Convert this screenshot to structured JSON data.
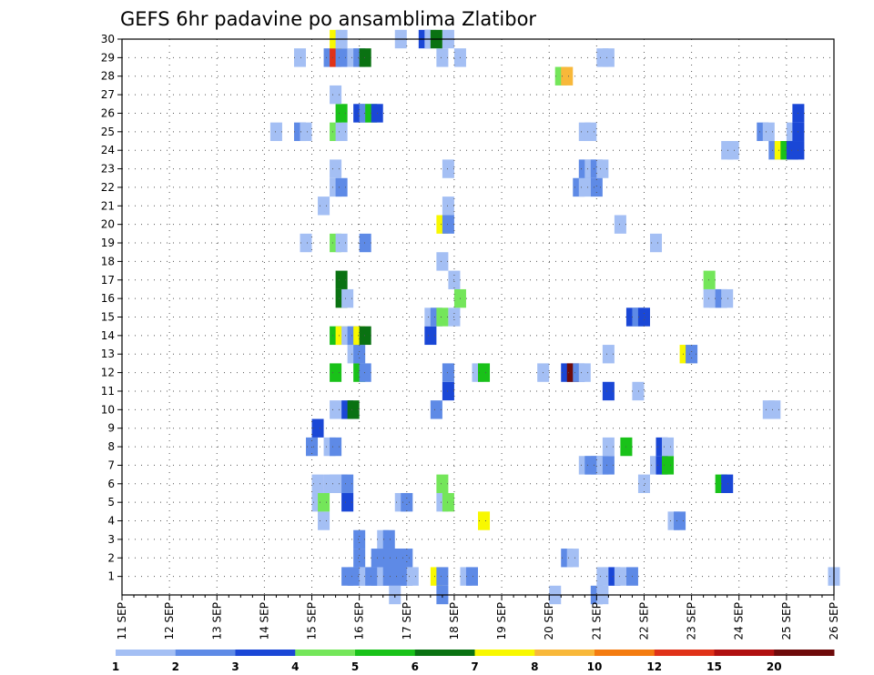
{
  "chart_data": {
    "type": "heatmap",
    "title": "GEFS 6hr padavine po ansamblima Zlatibor",
    "xlabel": "",
    "ylabel": "",
    "x_ticks": [
      "11 SEP",
      "12 SEP",
      "13 SEP",
      "14 SEP",
      "15 SEP",
      "16 SEP",
      "17 SEP",
      "18 SEP",
      "19 SEP",
      "20 SEP",
      "21 SEP",
      "22 SEP",
      "23 SEP",
      "24 SEP",
      "25 SEP",
      "26 SEP"
    ],
    "y_ticks": [
      "1",
      "2",
      "3",
      "4",
      "5",
      "6",
      "7",
      "8",
      "9",
      "10",
      "11",
      "12",
      "13",
      "14",
      "15",
      "16",
      "17",
      "18",
      "19",
      "20",
      "21",
      "22",
      "23",
      "24",
      "25",
      "26",
      "27",
      "28",
      "29",
      "30"
    ],
    "x_unit": "6-hour steps from 11 SEP 00Z",
    "x_steps_per_day": 4,
    "y_range": [
      0,
      30
    ],
    "grid": true,
    "colorbar": {
      "labels": [
        "1",
        "2",
        "3",
        "4",
        "5",
        "6",
        "7",
        "8",
        "10",
        "12",
        "15",
        "20"
      ],
      "colors": [
        "#a4bff4",
        "#5e8ae6",
        "#1a47d6",
        "#74e65a",
        "#19c219",
        "#0a7212",
        "#f8f800",
        "#f8b83a",
        "#f47c10",
        "#e03218",
        "#b01010",
        "#6e0a0a"
      ]
    },
    "cells": [
      [
        1,
        40,
        0
      ],
      [
        2,
        40,
        1
      ],
      [
        3,
        40,
        1
      ],
      [
        1,
        41,
        0
      ],
      [
        1,
        42,
        1
      ],
      [
        1,
        43,
        1
      ],
      [
        2,
        43,
        1
      ],
      [
        1,
        44,
        0
      ],
      [
        2,
        44,
        1
      ],
      [
        3,
        44,
        0
      ],
      [
        1,
        45,
        1
      ],
      [
        2,
        45,
        1
      ],
      [
        3,
        45,
        1
      ],
      [
        1,
        46,
        1
      ],
      [
        2,
        46,
        1
      ],
      [
        1,
        47,
        1
      ],
      [
        2,
        47,
        1
      ],
      [
        1,
        48,
        1
      ],
      [
        2,
        48,
        1
      ],
      [
        1,
        49,
        0
      ],
      [
        1,
        38,
        1
      ],
      [
        1,
        39,
        1
      ],
      [
        1,
        81,
        0
      ],
      [
        1,
        82,
        0
      ],
      [
        1,
        83,
        2
      ],
      [
        1,
        84,
        0
      ],
      [
        1,
        86,
        1
      ],
      [
        1,
        120,
        0
      ],
      [
        1,
        53,
        6
      ],
      [
        1,
        54,
        1
      ],
      [
        1,
        58,
        0
      ],
      [
        0,
        54,
        1
      ],
      [
        1,
        59,
        1
      ],
      [
        0,
        46,
        0
      ],
      [
        0,
        73,
        0
      ],
      [
        0,
        80,
        1
      ],
      [
        0,
        81,
        0
      ],
      [
        2,
        75,
        1
      ],
      [
        2,
        76,
        0
      ],
      [
        4,
        34,
        0
      ],
      [
        4,
        93,
        0
      ],
      [
        4,
        94,
        1
      ],
      [
        4,
        61,
        6
      ],
      [
        5,
        33,
        0
      ],
      [
        5,
        34,
        3
      ],
      [
        5,
        38,
        2
      ],
      [
        5,
        47,
        0
      ],
      [
        5,
        48,
        1
      ],
      [
        5,
        54,
        0
      ],
      [
        5,
        55,
        3
      ],
      [
        6,
        33,
        0
      ],
      [
        6,
        35,
        0
      ],
      [
        6,
        36,
        0
      ],
      [
        6,
        37,
        0
      ],
      [
        6,
        38,
        1
      ],
      [
        6,
        54,
        3
      ],
      [
        6,
        88,
        0
      ],
      [
        6,
        101,
        4
      ],
      [
        6,
        102,
        2
      ],
      [
        7,
        78,
        0
      ],
      [
        7,
        79,
        1
      ],
      [
        7,
        80,
        1
      ],
      [
        7,
        81,
        0
      ],
      [
        7,
        82,
        1
      ],
      [
        7,
        90,
        0
      ],
      [
        7,
        91,
        2
      ],
      [
        7,
        92,
        4
      ],
      [
        8,
        32,
        1
      ],
      [
        8,
        35,
        0
      ],
      [
        8,
        36,
        1
      ],
      [
        8,
        82,
        0
      ],
      [
        8,
        85,
        4
      ],
      [
        8,
        91,
        2
      ],
      [
        8,
        92,
        0
      ],
      [
        9,
        33,
        2
      ],
      [
        10,
        36,
        0
      ],
      [
        10,
        38,
        2
      ],
      [
        10,
        39,
        5
      ],
      [
        10,
        53,
        1
      ],
      [
        10,
        109,
        0
      ],
      [
        10,
        110,
        0
      ],
      [
        11,
        55,
        2
      ],
      [
        11,
        82,
        2
      ],
      [
        11,
        87,
        0
      ],
      [
        12,
        36,
        4
      ],
      [
        12,
        40,
        4
      ],
      [
        12,
        41,
        1
      ],
      [
        12,
        55,
        1
      ],
      [
        12,
        60,
        0
      ],
      [
        12,
        61,
        4
      ],
      [
        12,
        71,
        0
      ],
      [
        12,
        75,
        2
      ],
      [
        12,
        76,
        11
      ],
      [
        12,
        77,
        1
      ],
      [
        12,
        78,
        0
      ],
      [
        13,
        39,
        0
      ],
      [
        13,
        40,
        1
      ],
      [
        13,
        82,
        0
      ],
      [
        13,
        95,
        6
      ],
      [
        13,
        96,
        1
      ],
      [
        14,
        36,
        4
      ],
      [
        14,
        37,
        6
      ],
      [
        14,
        38,
        0
      ],
      [
        14,
        39,
        1
      ],
      [
        14,
        40,
        6
      ],
      [
        14,
        41,
        5
      ],
      [
        14,
        52,
        2
      ],
      [
        15,
        52,
        0
      ],
      [
        15,
        53,
        1
      ],
      [
        15,
        54,
        3
      ],
      [
        15,
        56,
        0
      ],
      [
        15,
        86,
        2
      ],
      [
        15,
        87,
        1
      ],
      [
        15,
        88,
        2
      ],
      [
        16,
        37,
        5
      ],
      [
        16,
        38,
        0
      ],
      [
        16,
        57,
        3
      ],
      [
        16,
        99,
        0
      ],
      [
        16,
        100,
        0
      ],
      [
        16,
        101,
        1
      ],
      [
        16,
        102,
        0
      ],
      [
        17,
        37,
        5
      ],
      [
        17,
        56,
        0
      ],
      [
        17,
        99,
        3
      ],
      [
        18,
        54,
        0
      ],
      [
        19,
        31,
        0
      ],
      [
        19,
        36,
        3
      ],
      [
        19,
        37,
        0
      ],
      [
        19,
        41,
        1
      ],
      [
        19,
        90,
        0
      ],
      [
        20,
        54,
        6
      ],
      [
        20,
        55,
        1
      ],
      [
        20,
        84,
        0
      ],
      [
        21,
        34,
        0
      ],
      [
        21,
        55,
        0
      ],
      [
        22,
        36,
        0
      ],
      [
        22,
        37,
        1
      ],
      [
        22,
        77,
        1
      ],
      [
        22,
        78,
        0
      ],
      [
        22,
        80,
        1
      ],
      [
        23,
        36,
        0
      ],
      [
        23,
        55,
        0
      ],
      [
        23,
        78,
        1
      ],
      [
        23,
        79,
        0
      ],
      [
        23,
        80,
        1
      ],
      [
        23,
        81,
        0
      ],
      [
        24,
        102,
        0
      ],
      [
        24,
        103,
        0
      ],
      [
        24,
        110,
        1
      ],
      [
        24,
        111,
        6
      ],
      [
        24,
        112,
        4
      ],
      [
        24,
        113,
        2
      ],
      [
        24,
        114,
        2
      ],
      [
        25,
        26,
        0
      ],
      [
        25,
        30,
        1
      ],
      [
        25,
        31,
        0
      ],
      [
        25,
        36,
        3
      ],
      [
        25,
        37,
        0
      ],
      [
        25,
        78,
        0
      ],
      [
        25,
        79,
        0
      ],
      [
        25,
        108,
        1
      ],
      [
        25,
        109,
        0
      ],
      [
        25,
        113,
        0
      ],
      [
        25,
        114,
        2
      ],
      [
        26,
        37,
        4
      ],
      [
        26,
        40,
        2
      ],
      [
        26,
        41,
        1
      ],
      [
        26,
        42,
        4
      ],
      [
        26,
        43,
        2
      ],
      [
        26,
        114,
        2
      ],
      [
        27,
        36,
        0
      ],
      [
        28,
        74,
        3
      ],
      [
        28,
        75,
        7
      ],
      [
        29,
        30,
        0
      ],
      [
        29,
        35,
        1
      ],
      [
        29,
        36,
        9
      ],
      [
        29,
        37,
        1
      ],
      [
        29,
        39,
        0
      ],
      [
        29,
        40,
        1
      ],
      [
        29,
        41,
        5
      ],
      [
        29,
        54,
        0
      ],
      [
        29,
        57,
        0
      ],
      [
        29,
        81,
        0
      ],
      [
        29,
        82,
        0
      ],
      [
        30,
        36,
        6
      ],
      [
        30,
        37,
        0
      ],
      [
        30,
        47,
        0
      ],
      [
        30,
        51,
        2
      ],
      [
        30,
        52,
        0
      ],
      [
        30,
        53,
        5
      ],
      [
        30,
        55,
        0
      ]
    ]
  }
}
